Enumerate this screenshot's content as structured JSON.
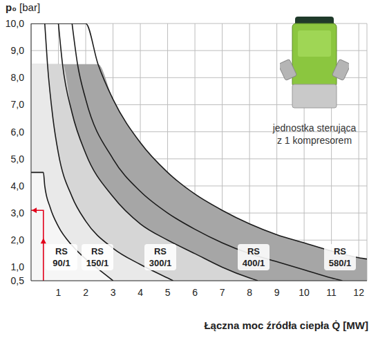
{
  "chart_data": {
    "type": "line",
    "y_label": "p₀ [bar]",
    "x_label": "Łączna moc źródła ciepła Q̇ [MW]",
    "annotation": "jednostka sterująca z 1 kompresorem",
    "xlim": [
      0,
      12.3
    ],
    "xticks": [
      1,
      2,
      3,
      4,
      5,
      6,
      7,
      8,
      9,
      10,
      11,
      12
    ],
    "ylim": [
      0.5,
      10
    ],
    "yticks": [
      {
        "value": 0.5,
        "label": "0,5"
      },
      {
        "value": 1,
        "label": "1,0"
      },
      {
        "value": 2,
        "label": "2,0"
      },
      {
        "value": 3,
        "label": "3,0"
      },
      {
        "value": 4,
        "label": "4,0"
      },
      {
        "value": 5,
        "label": "5,0"
      },
      {
        "value": 6,
        "label": "6,0"
      },
      {
        "value": 7,
        "label": "7,0"
      },
      {
        "value": 8,
        "label": "8,0"
      },
      {
        "value": 9,
        "label": "9,0"
      },
      {
        "value": 10,
        "label": "10,0"
      }
    ],
    "grid": true,
    "series": [
      {
        "name": "RS 90/1",
        "color": "#1a1a1a",
        "x": [
          0,
          0.45,
          0.5,
          0.7,
          1.0,
          1.5,
          2.0,
          2.5,
          3.0
        ],
        "values": [
          4.5,
          4.5,
          4.0,
          3.2,
          2.5,
          1.8,
          1.3,
          0.9,
          0.5
        ]
      },
      {
        "name": "RS 150/1",
        "color": "#1a1a1a",
        "x": [
          0.5,
          0.6,
          0.8,
          1.0,
          1.5,
          2.0,
          3.0,
          4.0,
          5.0,
          5.2
        ],
        "values": [
          10,
          8.5,
          6.5,
          5.2,
          3.6,
          2.7,
          1.7,
          1.1,
          0.6,
          0.5
        ]
      },
      {
        "name": "RS 300/1",
        "color": "#1a1a1a",
        "x": [
          1.0,
          1.15,
          1.5,
          2.0,
          3.0,
          4.0,
          5.0,
          6.0,
          7.0,
          8.0,
          8.3
        ],
        "values": [
          10,
          8.5,
          6.7,
          5.2,
          3.6,
          2.6,
          2.0,
          1.5,
          1.0,
          0.6,
          0.5
        ]
      },
      {
        "name": "RS 400/1",
        "color": "#1a1a1a",
        "x": [
          1.5,
          1.7,
          2.0,
          3.0,
          4.0,
          5.0,
          6.0,
          7.0,
          8.0,
          9.0,
          10.0,
          11.0,
          11.4
        ],
        "values": [
          10,
          8.5,
          7.2,
          5.0,
          3.8,
          3.0,
          2.4,
          1.9,
          1.5,
          1.2,
          0.9,
          0.6,
          0.5
        ]
      },
      {
        "name": "RS 580/1",
        "color": "#1a1a1a",
        "x": [
          0,
          2.0,
          2.45,
          3.0,
          4.0,
          5.0,
          6.0,
          7.0,
          8.0,
          9.0,
          10.0,
          11.0,
          12.0,
          12.3
        ],
        "values": [
          10,
          10,
          8.5,
          7.2,
          5.6,
          4.5,
          3.7,
          3.1,
          2.6,
          2.2,
          1.9,
          1.6,
          1.35,
          1.3
        ]
      }
    ],
    "bands": [
      {
        "color": "#a6a6a6",
        "x": [
          0,
          2.45,
          3,
          4,
          5,
          6,
          7,
          8,
          9,
          10,
          11,
          12,
          12.3
        ],
        "y": [
          8.5,
          8.5,
          7.2,
          5.6,
          4.5,
          3.7,
          3.1,
          2.6,
          2.2,
          1.9,
          1.6,
          1.35,
          1.3
        ]
      },
      {
        "color": "#d6d6d6",
        "x": [
          0,
          1.15,
          1.5,
          2,
          3,
          4,
          5,
          6,
          7,
          8,
          8.3
        ],
        "y": [
          8.5,
          8.5,
          6.7,
          5.2,
          3.6,
          2.6,
          2.0,
          1.5,
          1.0,
          0.6,
          0.5
        ]
      },
      {
        "color": "#e9e9e9",
        "x": [
          0,
          0.6,
          0.8,
          1,
          1.5,
          2,
          3,
          4,
          5,
          5.2
        ],
        "y": [
          8.5,
          8.5,
          6.5,
          5.2,
          3.6,
          2.7,
          1.7,
          1.1,
          0.6,
          0.5
        ]
      },
      {
        "color": "#f6f6f6",
        "x": [
          0,
          0.45,
          0.5,
          0.7,
          1,
          1.5,
          2,
          2.5,
          3
        ],
        "y": [
          4.5,
          4.5,
          4.0,
          3.2,
          2.5,
          1.8,
          1.3,
          0.9,
          0.5
        ]
      }
    ],
    "arrow": {
      "color": "#e2001a",
      "x": [
        0.45,
        0.45,
        0
      ],
      "y": [
        0.5,
        3.1,
        3.1
      ]
    }
  }
}
